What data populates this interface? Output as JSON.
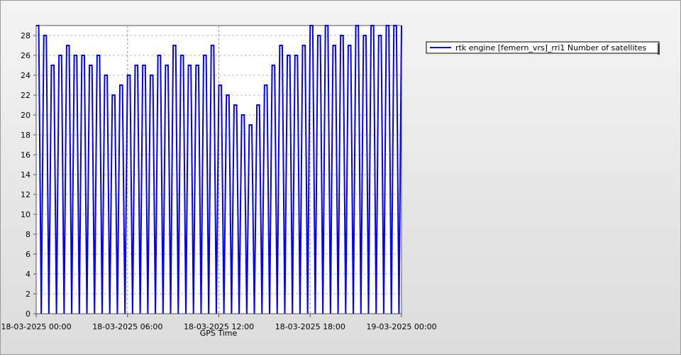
{
  "chart_data": {
    "type": "line",
    "x_label": "GPS Time",
    "x": [
      "18-03-2025 00:00",
      "18-03-2025 00:10",
      "18-03-2025 00:20",
      "18-03-2025 00:30",
      "18-03-2025 00:40",
      "18-03-2025 00:50",
      "18-03-2025 01:00",
      "18-03-2025 01:10",
      "18-03-2025 01:20",
      "18-03-2025 01:30",
      "18-03-2025 01:40",
      "18-03-2025 01:50",
      "18-03-2025 02:00",
      "18-03-2025 02:10",
      "18-03-2025 02:20",
      "18-03-2025 02:30",
      "18-03-2025 02:40",
      "18-03-2025 02:50",
      "18-03-2025 03:00",
      "18-03-2025 03:10",
      "18-03-2025 03:20",
      "18-03-2025 03:30",
      "18-03-2025 03:40",
      "18-03-2025 03:50",
      "18-03-2025 04:00",
      "18-03-2025 04:10",
      "18-03-2025 04:20",
      "18-03-2025 04:30",
      "18-03-2025 04:40",
      "18-03-2025 04:50",
      "18-03-2025 05:00",
      "18-03-2025 05:10",
      "18-03-2025 05:20",
      "18-03-2025 05:30",
      "18-03-2025 05:40",
      "18-03-2025 05:50",
      "18-03-2025 06:00",
      "18-03-2025 06:10",
      "18-03-2025 06:20",
      "18-03-2025 06:30",
      "18-03-2025 06:40",
      "18-03-2025 06:50",
      "18-03-2025 07:00",
      "18-03-2025 07:10",
      "18-03-2025 07:20",
      "18-03-2025 07:30",
      "18-03-2025 07:40",
      "18-03-2025 07:50",
      "18-03-2025 08:00",
      "18-03-2025 08:10",
      "18-03-2025 08:20",
      "18-03-2025 08:30",
      "18-03-2025 08:40",
      "18-03-2025 08:50",
      "18-03-2025 09:00",
      "18-03-2025 09:10",
      "18-03-2025 09:20",
      "18-03-2025 09:30",
      "18-03-2025 09:40",
      "18-03-2025 09:50",
      "18-03-2025 10:00",
      "18-03-2025 10:10",
      "18-03-2025 10:20",
      "18-03-2025 10:30",
      "18-03-2025 10:40",
      "18-03-2025 10:50",
      "18-03-2025 11:00",
      "18-03-2025 11:10",
      "18-03-2025 11:20",
      "18-03-2025 11:30",
      "18-03-2025 11:40",
      "18-03-2025 11:50",
      "18-03-2025 12:00",
      "18-03-2025 12:10",
      "18-03-2025 12:20",
      "18-03-2025 12:30",
      "18-03-2025 12:40",
      "18-03-2025 12:50",
      "18-03-2025 13:00",
      "18-03-2025 13:10",
      "18-03-2025 13:20",
      "18-03-2025 13:30",
      "18-03-2025 13:40",
      "18-03-2025 13:50",
      "18-03-2025 14:00",
      "18-03-2025 14:10",
      "18-03-2025 14:20",
      "18-03-2025 14:30",
      "18-03-2025 14:40",
      "18-03-2025 14:50",
      "18-03-2025 15:00",
      "18-03-2025 15:10",
      "18-03-2025 15:20",
      "18-03-2025 15:30",
      "18-03-2025 15:40",
      "18-03-2025 15:50",
      "18-03-2025 16:00",
      "18-03-2025 16:10",
      "18-03-2025 16:20",
      "18-03-2025 16:30",
      "18-03-2025 16:40",
      "18-03-2025 16:50",
      "18-03-2025 17:00",
      "18-03-2025 17:10",
      "18-03-2025 17:20",
      "18-03-2025 17:30",
      "18-03-2025 17:40",
      "18-03-2025 17:50",
      "18-03-2025 18:00",
      "18-03-2025 18:10",
      "18-03-2025 18:20",
      "18-03-2025 18:30",
      "18-03-2025 18:40",
      "18-03-2025 18:50",
      "18-03-2025 19:00",
      "18-03-2025 19:10",
      "18-03-2025 19:20",
      "18-03-2025 19:30",
      "18-03-2025 19:40",
      "18-03-2025 19:50",
      "18-03-2025 20:00",
      "18-03-2025 20:10",
      "18-03-2025 20:20",
      "18-03-2025 20:30",
      "18-03-2025 20:40",
      "18-03-2025 20:50",
      "18-03-2025 21:00",
      "18-03-2025 21:10",
      "18-03-2025 21:20",
      "18-03-2025 21:30",
      "18-03-2025 21:40",
      "18-03-2025 21:50",
      "18-03-2025 22:00",
      "18-03-2025 22:10",
      "18-03-2025 22:20",
      "18-03-2025 22:30",
      "18-03-2025 22:40",
      "18-03-2025 22:50",
      "18-03-2025 23:00",
      "18-03-2025 23:10",
      "18-03-2025 23:20",
      "18-03-2025 23:30",
      "18-03-2025 23:40",
      "18-03-2025 23:50",
      "19-03-2025 00:00"
    ],
    "series": [
      {
        "name": "rtk engine [femern_vrs]_rri1 Number of satellites",
        "color": "#0000ff",
        "values": [
          29,
          29,
          0,
          28,
          28,
          0,
          25,
          25,
          0,
          26,
          26,
          0,
          27,
          27,
          0,
          26,
          26,
          0,
          26,
          26,
          0,
          25,
          25,
          0,
          26,
          26,
          0,
          24,
          24,
          0,
          22,
          22,
          0,
          23,
          23,
          0,
          24,
          24,
          0,
          25,
          25,
          0,
          25,
          25,
          0,
          24,
          24,
          0,
          26,
          26,
          0,
          25,
          25,
          0,
          27,
          27,
          0,
          26,
          26,
          0,
          25,
          25,
          0,
          25,
          25,
          0,
          26,
          26,
          0,
          27,
          27,
          0,
          23,
          23,
          0,
          22,
          22,
          0,
          21,
          21,
          0,
          20,
          20,
          0,
          19,
          19,
          0,
          21,
          21,
          0,
          23,
          23,
          0,
          25,
          25,
          0,
          27,
          27,
          0,
          26,
          26,
          0,
          26,
          26,
          0,
          27,
          27,
          0,
          29,
          29,
          0,
          28,
          28,
          0,
          29,
          29,
          0,
          27,
          27,
          0,
          28,
          28,
          0,
          27,
          27,
          0,
          29,
          29,
          0,
          28,
          28,
          0,
          29,
          29,
          0,
          28,
          28,
          0,
          29,
          29,
          0,
          29,
          29,
          0,
          29
        ]
      }
    ],
    "xlim": [
      "18-03-2025 00:00",
      "19-03-2025 00:00"
    ],
    "xticks": [
      "18-03-2025 00:00",
      "18-03-2025 06:00",
      "18-03-2025 12:00",
      "18-03-2025 18:00",
      "19-03-2025 00:00"
    ],
    "ylim": [
      0,
      29
    ],
    "yticks": [
      0,
      2,
      4,
      6,
      8,
      10,
      12,
      14,
      16,
      18,
      20,
      22,
      24,
      26,
      28
    ],
    "grid": true
  }
}
